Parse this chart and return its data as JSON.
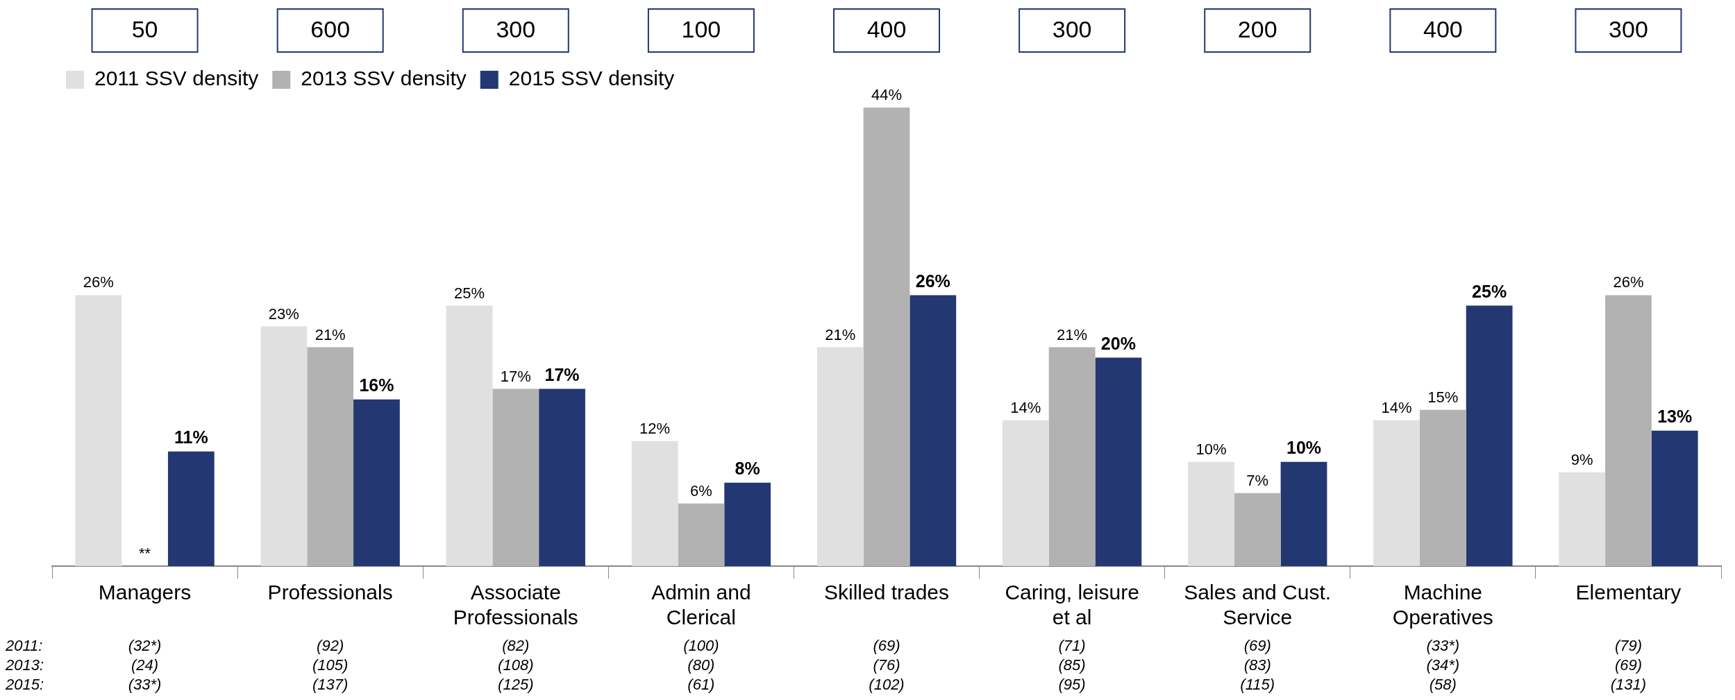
{
  "chart_data": {
    "type": "bar",
    "categories": [
      "Managers",
      "Professionals",
      "Associate Professionals",
      "Admin and Clerical",
      "Skilled trades",
      "Caring, leisure et al",
      "Sales and Cust. Service",
      "Machine Operatives",
      "Elementary"
    ],
    "series": [
      {
        "name": "2011 SSV density",
        "color": "#e0e0e0",
        "values": [
          26,
          23,
          25,
          12,
          21,
          14,
          10,
          14,
          9
        ],
        "value_labels": [
          "26%",
          "23%",
          "25%",
          "12%",
          "21%",
          "14%",
          "10%",
          "14%",
          "9%"
        ]
      },
      {
        "name": "2013 SSV density",
        "color": "#b2b2b2",
        "values": [
          null,
          21,
          17,
          6,
          44,
          21,
          7,
          15,
          26
        ],
        "value_labels": [
          "**",
          "21%",
          "17%",
          "6%",
          "44%",
          "21%",
          "7%",
          "15%",
          "26%"
        ]
      },
      {
        "name": "2015 SSV density",
        "color": "#233872",
        "values": [
          11,
          16,
          17,
          8,
          26,
          20,
          10,
          25,
          13
        ],
        "value_labels": [
          "11%",
          "16%",
          "17%",
          "8%",
          "26%",
          "20%",
          "10%",
          "25%",
          "13%"
        ]
      }
    ],
    "legend": "top left",
    "grid": false,
    "annotations": [
      "50",
      "600",
      "300",
      "100",
      "400",
      "300",
      "200",
      "400",
      "300",
      "2011:\n2013:\n2015:",
      "(32*)\n(24)\n(33*)",
      "(92)\n(105)\n(137)",
      "(82)\n(108)\n(125)",
      "(100)\n(80)\n(61)",
      "(69)\n(76)\n(102)",
      "(71)\n(85)\n(95)",
      "(69)\n(83)\n(115)",
      "(33*)\n(34*)\n(58)",
      "(79)\n(69)\n(131)"
    ]
  }
}
